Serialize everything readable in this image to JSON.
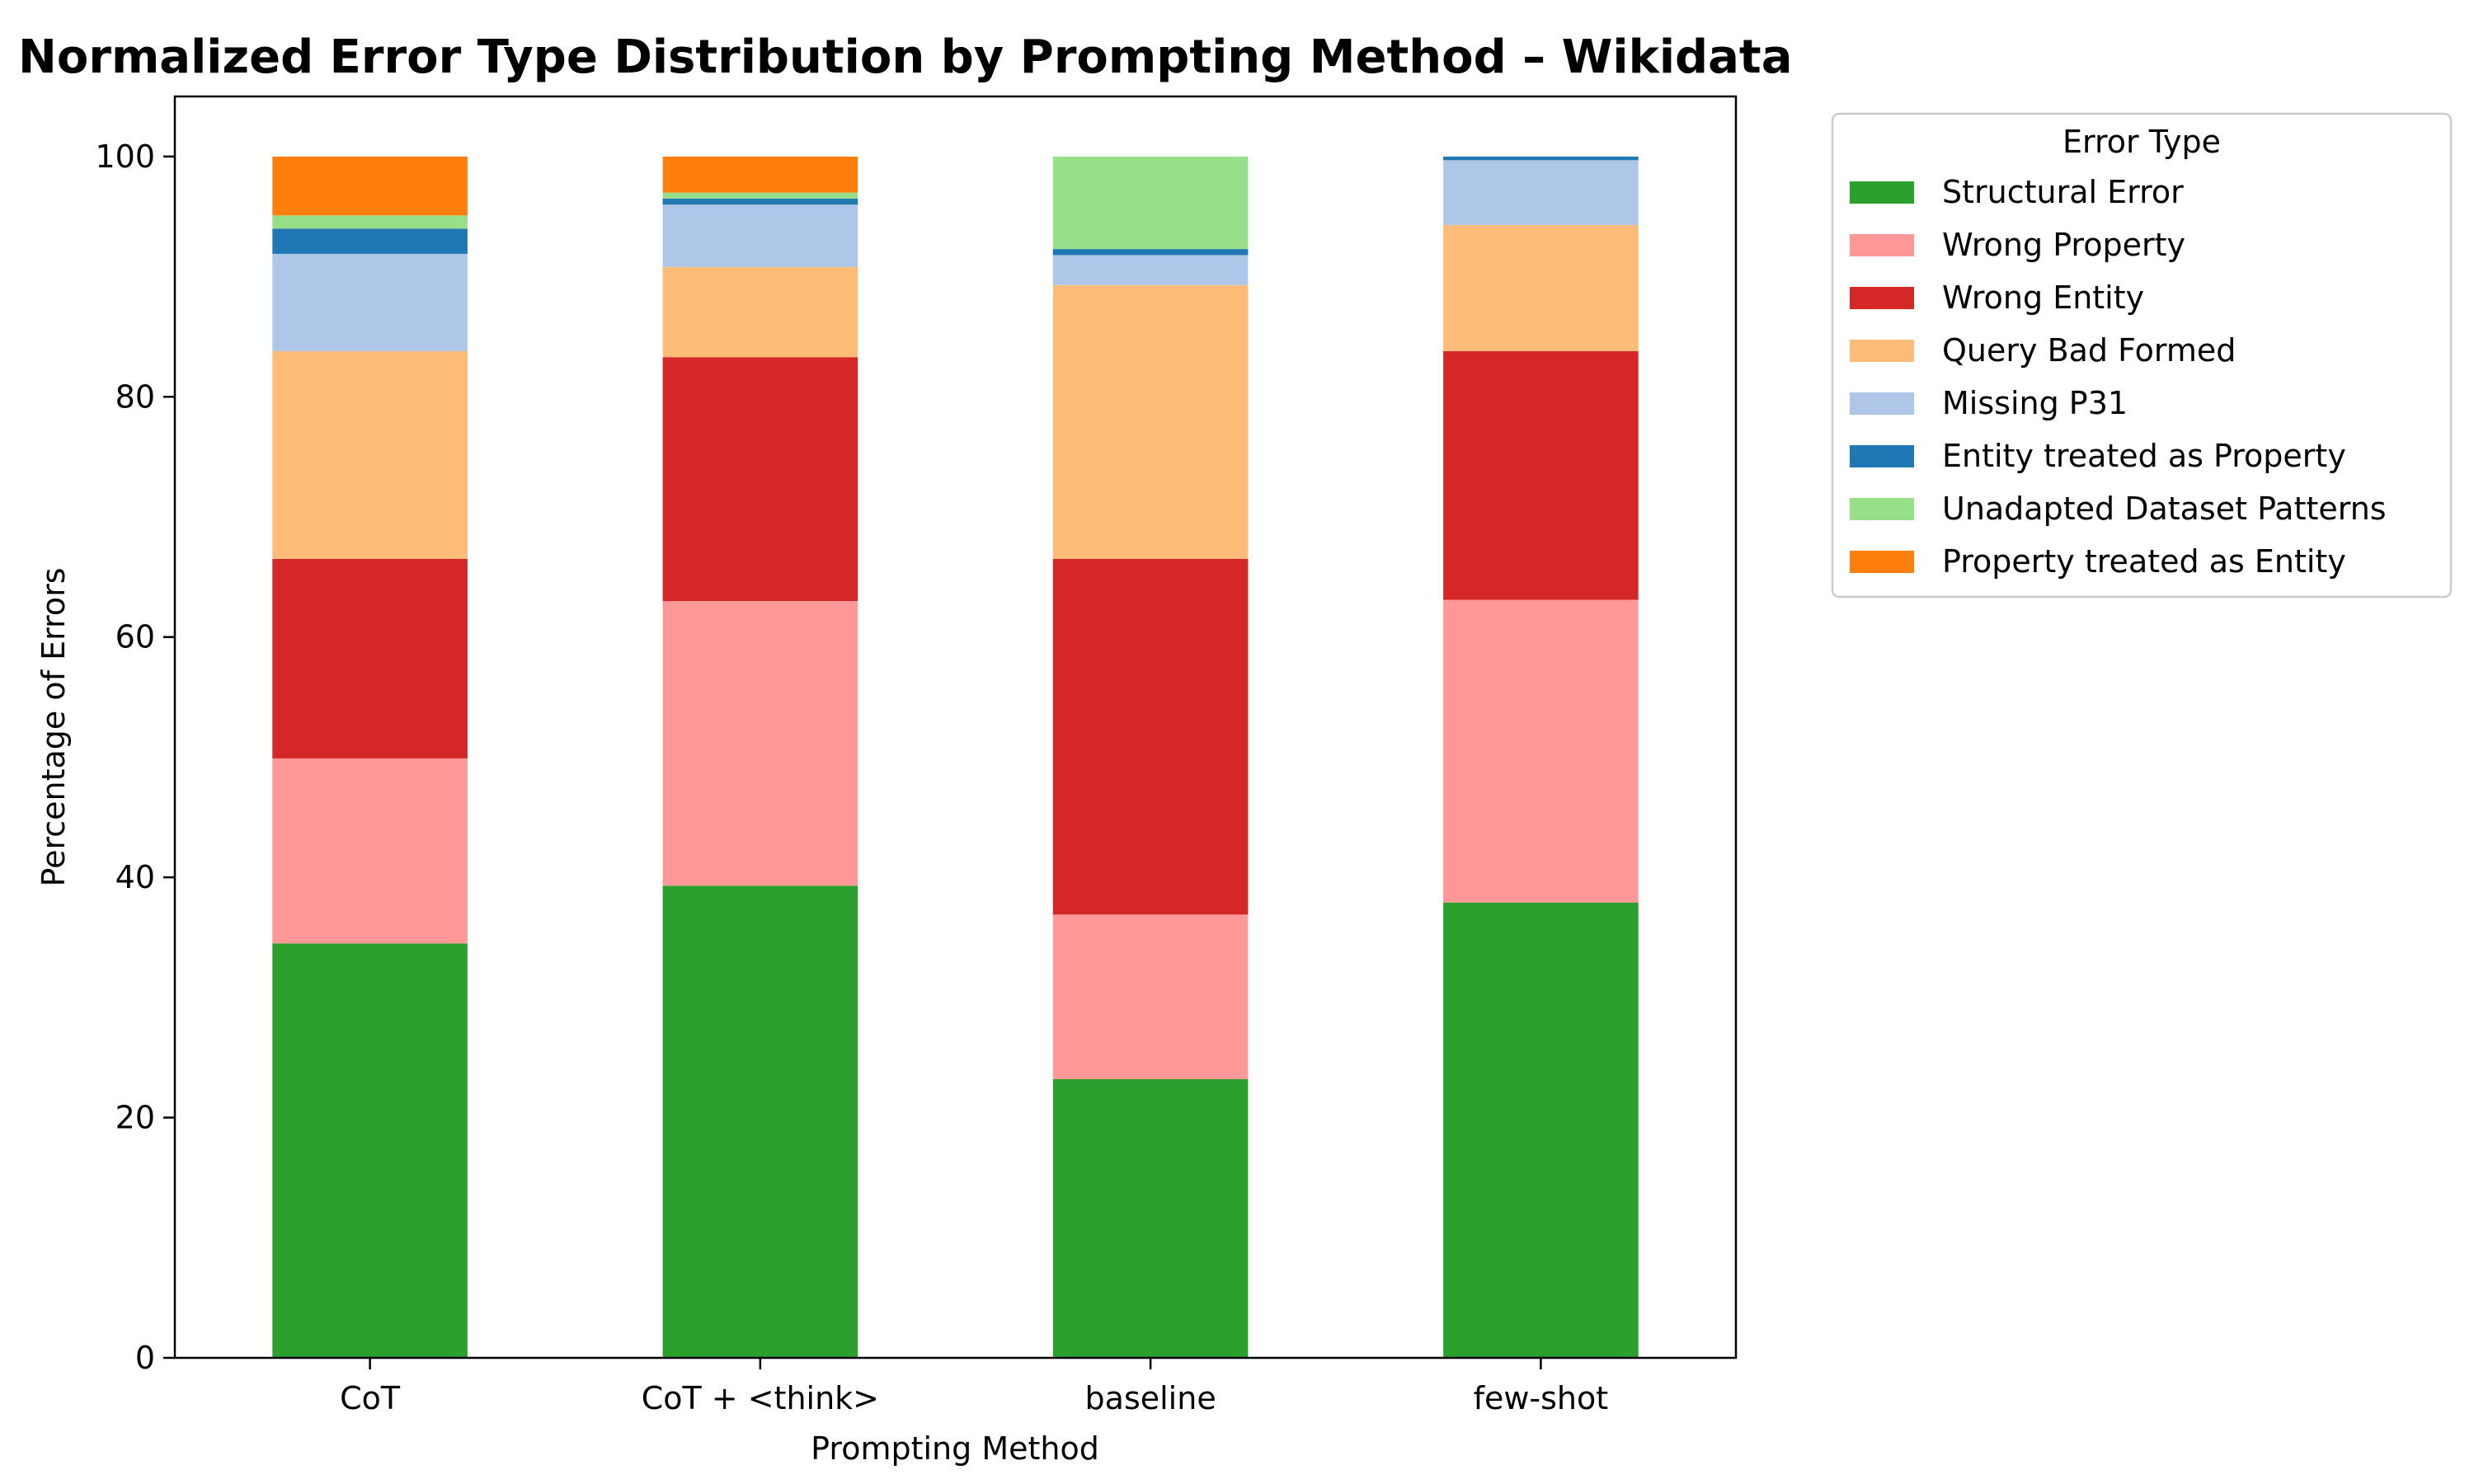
{
  "chart_data": {
    "type": "bar",
    "stacked": true,
    "title": "Normalized Error Type Distribution by Prompting Method – Wikidata",
    "xlabel": "Prompting Method",
    "ylabel": "Percentage of Errors",
    "ylim": [
      0,
      105
    ],
    "yticks": [
      0,
      20,
      40,
      60,
      80,
      100
    ],
    "categories": [
      "CoT",
      "CoT + <think>",
      "baseline",
      "few-shot"
    ],
    "legend_title": "Error Type",
    "legend_position": "outside-upper-right",
    "grid": false,
    "series": [
      {
        "name": "Structural Error",
        "color": "#2ca02c",
        "values": [
          34.5,
          39.3,
          23.2,
          37.9
        ]
      },
      {
        "name": "Wrong Property",
        "color": "#ff9896",
        "values": [
          15.4,
          23.7,
          13.7,
          25.2
        ]
      },
      {
        "name": "Wrong Entity",
        "color": "#d62728",
        "values": [
          16.6,
          20.3,
          29.6,
          20.7
        ]
      },
      {
        "name": "Query Bad Formed",
        "color": "#ffbb78",
        "values": [
          17.3,
          7.5,
          22.8,
          10.5
        ]
      },
      {
        "name": "Missing P31",
        "color": "#aec7e8",
        "values": [
          8.1,
          5.2,
          2.5,
          5.4
        ]
      },
      {
        "name": "Entity treated as Property",
        "color": "#1f77b4",
        "values": [
          2.1,
          0.5,
          0.5,
          0.3
        ]
      },
      {
        "name": "Unadapted Dataset Patterns",
        "color": "#98df8a",
        "values": [
          1.1,
          0.5,
          7.7,
          0.0
        ]
      },
      {
        "name": "Property treated as Entity",
        "color": "#ff7f0e",
        "values": [
          4.9,
          3.0,
          0.0,
          0.0
        ]
      }
    ]
  }
}
